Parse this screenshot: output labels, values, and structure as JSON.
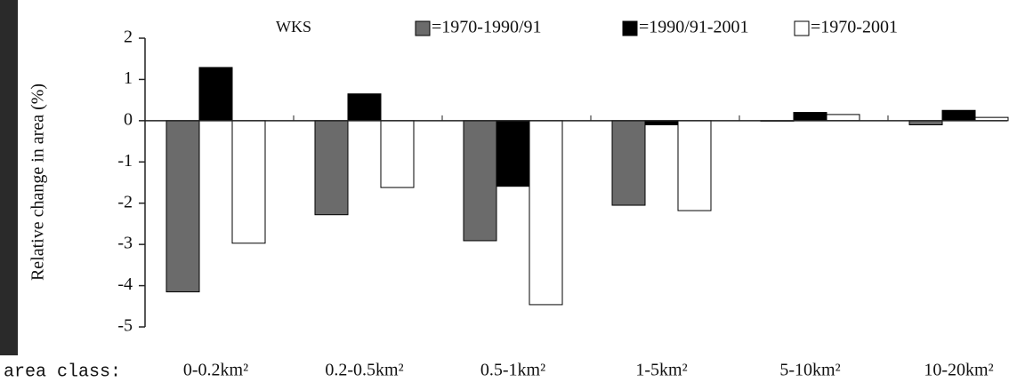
{
  "chart_data": {
    "type": "bar",
    "title": "WKS",
    "y_label": "Relative change in area (%)",
    "x_label": "area class:",
    "categories": [
      "0-0.2km²",
      "0.2-0.5km²",
      "0.5-1km²",
      "1-5km²",
      "5-10km²",
      "10-20km²"
    ],
    "series": [
      {
        "name": "=1970-1990/91",
        "color": "#6b6b6b",
        "values": [
          -4.15,
          -2.28,
          -2.91,
          -2.05,
          0,
          -0.1
        ]
      },
      {
        "name": "=1990/91-2001",
        "color": "#000000",
        "values": [
          1.29,
          0.65,
          -1.59,
          -0.1,
          0.2,
          0.25
        ]
      },
      {
        "name": "=1970-2001",
        "color": "#ffffff",
        "values": [
          -2.97,
          -1.62,
          -4.46,
          -2.18,
          0.15,
          0.08
        ]
      }
    ],
    "ylim": [
      -5,
      2
    ],
    "yticks": [
      -5,
      -4,
      -3,
      -2,
      -1,
      0,
      1,
      2
    ],
    "grid": false
  }
}
